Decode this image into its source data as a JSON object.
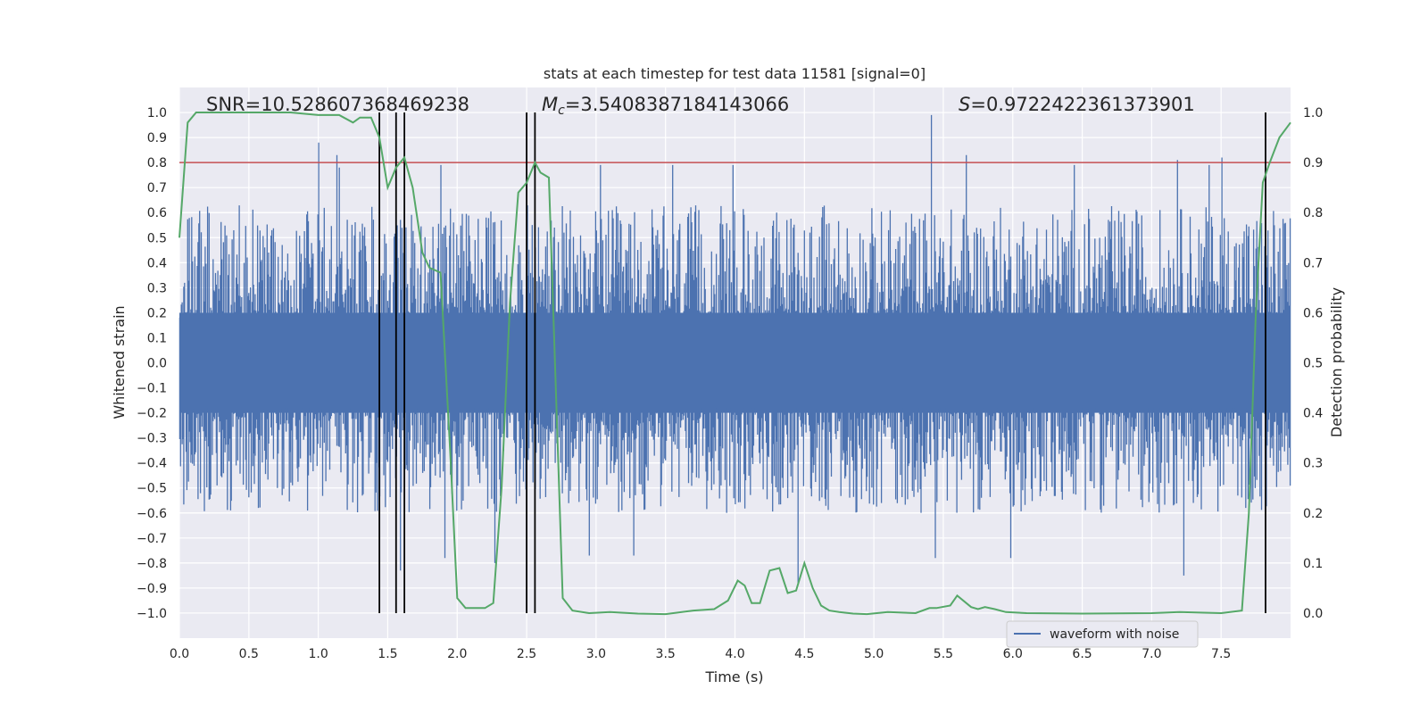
{
  "chart_data": {
    "type": "line",
    "title": "stats at each timestep for test data 11581 [signal=0]",
    "xlabel": "Time (s)",
    "ylabel": "Whitened strain",
    "y2label": "Detection probability",
    "xlim": [
      0.0,
      8.0
    ],
    "ylim": [
      -1.1,
      1.1
    ],
    "y2lim": [
      -0.05,
      1.05
    ],
    "xticks": [
      "0.0",
      "0.5",
      "1.0",
      "1.5",
      "2.0",
      "2.5",
      "3.0",
      "3.5",
      "4.0",
      "4.5",
      "5.0",
      "5.5",
      "6.0",
      "6.5",
      "7.0",
      "7.5"
    ],
    "yticks": [
      "1.0",
      "0.9",
      "0.8",
      "0.7",
      "0.6",
      "0.5",
      "0.4",
      "0.3",
      "0.2",
      "0.1",
      "0.0",
      "−0.1",
      "−0.2",
      "−0.3",
      "−0.4",
      "−0.5",
      "−0.6",
      "−0.7",
      "−0.8",
      "−0.9",
      "−1.0"
    ],
    "y2ticks": [
      "1.0",
      "0.9",
      "0.8",
      "0.7",
      "0.6",
      "0.5",
      "0.4",
      "0.3",
      "0.2",
      "0.1",
      "0.0"
    ],
    "annotations": {
      "snr": "SNR=10.528607368469238",
      "mc_prefix": "M",
      "mc_sub": "c",
      "mc_value": "=3.5408387184143066",
      "s_prefix": "S",
      "s_value": "=0.9722422361373901"
    },
    "threshold": 0.8,
    "vertical_lines": [
      1.44,
      1.56,
      1.62,
      2.5,
      2.56,
      7.82
    ],
    "waveform": {
      "name": "waveform with noise",
      "color": "#4c72b0",
      "sample_count": 1400,
      "typical_envelope": [
        -0.4,
        0.4
      ],
      "peaks_high": [
        [
          1.0,
          0.88
        ],
        [
          1.13,
          0.83
        ],
        [
          1.15,
          0.78
        ],
        [
          5.41,
          0.99
        ],
        [
          5.66,
          0.83
        ],
        [
          7.18,
          0.81
        ],
        [
          7.5,
          0.82
        ],
        [
          1.88,
          0.79
        ],
        [
          3.03,
          0.79
        ],
        [
          3.55,
          0.79
        ],
        [
          3.98,
          0.79
        ],
        [
          6.44,
          0.79
        ],
        [
          7.41,
          0.79
        ]
      ],
      "peaks_low": [
        [
          1.59,
          -0.83
        ],
        [
          4.45,
          -0.88
        ],
        [
          7.23,
          -0.85
        ],
        [
          2.27,
          -0.8
        ],
        [
          3.27,
          -0.77
        ],
        [
          5.44,
          -0.78
        ],
        [
          5.98,
          -0.78
        ],
        [
          1.91,
          -0.78
        ],
        [
          2.95,
          -0.77
        ]
      ]
    },
    "detection_probability": {
      "name": "detection probability",
      "color": "#55a868",
      "x": [
        0.0,
        0.06,
        0.12,
        0.2,
        0.3,
        0.5,
        0.8,
        1.0,
        1.1,
        1.15,
        1.25,
        1.3,
        1.38,
        1.44,
        1.5,
        1.56,
        1.62,
        1.68,
        1.75,
        1.8,
        1.88,
        1.95,
        2.0,
        2.06,
        2.12,
        2.2,
        2.26,
        2.32,
        2.38,
        2.44,
        2.5,
        2.56,
        2.6,
        2.66,
        2.76,
        2.83,
        2.95,
        3.1,
        3.3,
        3.5,
        3.7,
        3.85,
        3.95,
        4.02,
        4.07,
        4.12,
        4.18,
        4.25,
        4.32,
        4.38,
        4.44,
        4.5,
        4.56,
        4.62,
        4.68,
        4.75,
        4.85,
        4.95,
        5.1,
        5.3,
        5.4,
        5.45,
        5.55,
        5.6,
        5.7,
        5.75,
        5.8,
        5.87,
        5.95,
        6.1,
        6.5,
        7.0,
        7.2,
        7.5,
        7.65,
        7.7,
        7.75,
        7.8,
        7.85,
        7.92,
        8.0
      ],
      "y": [
        0.75,
        0.98,
        1.0,
        1.0,
        1.0,
        1.0,
        1.0,
        0.995,
        0.995,
        0.995,
        0.98,
        0.99,
        0.99,
        0.95,
        0.85,
        0.89,
        0.91,
        0.85,
        0.72,
        0.69,
        0.68,
        0.32,
        0.03,
        0.01,
        0.01,
        0.01,
        0.02,
        0.25,
        0.62,
        0.84,
        0.86,
        0.9,
        0.88,
        0.87,
        0.03,
        0.005,
        0.0,
        0.002,
        -0.001,
        -0.002,
        0.005,
        0.008,
        0.025,
        0.065,
        0.055,
        0.02,
        0.02,
        0.085,
        0.09,
        0.04,
        0.045,
        0.1,
        0.05,
        0.015,
        0.005,
        0.002,
        -0.001,
        -0.002,
        0.002,
        0.0,
        0.01,
        0.01,
        0.015,
        0.035,
        0.012,
        0.008,
        0.012,
        0.008,
        0.002,
        0.0,
        -0.001,
        0.0,
        0.002,
        0.0,
        0.005,
        0.2,
        0.6,
        0.86,
        0.9,
        0.95,
        0.98
      ]
    },
    "legend": {
      "label": "waveform with noise",
      "location": "lower-right"
    }
  }
}
